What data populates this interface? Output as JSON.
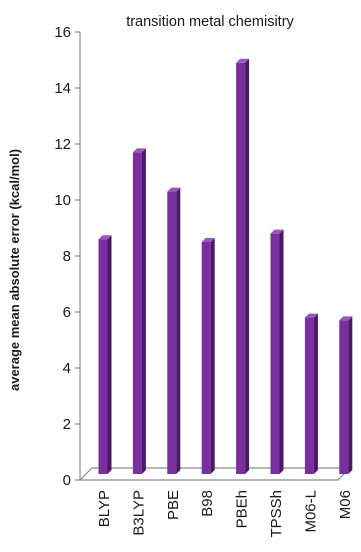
{
  "chart_data": {
    "type": "bar",
    "title": "transition metal chemisitry",
    "xlabel": "",
    "ylabel": "average mean absolute error (kcal/mol)",
    "categories": [
      "BLYP",
      "B3LYP",
      "PBE",
      "B98",
      "PBEh",
      "TPSSh",
      "M06-L",
      "M06"
    ],
    "values": [
      8.6,
      11.7,
      10.3,
      8.5,
      14.9,
      8.8,
      5.8,
      5.7
    ],
    "ylim": [
      0,
      16
    ],
    "yticks": [
      "0",
      "2",
      "4",
      "6",
      "8",
      "10",
      "12",
      "14",
      "16"
    ],
    "grid": false,
    "legend": "none",
    "colors": {
      "bar_face": "#7a2fa0",
      "bar_side": "#4c1866",
      "bar_top": "#9b55c2",
      "axis": "#8c8c8c"
    }
  }
}
